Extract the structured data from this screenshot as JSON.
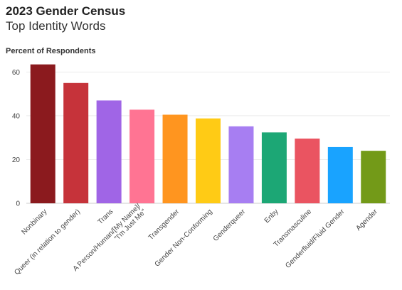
{
  "chart_data": {
    "type": "bar",
    "title": "2023 Gender Census",
    "subtitle": "Top Identity Words",
    "ylabel": "Percent of Respondents",
    "xlabel": "",
    "ylim": [
      0,
      65
    ],
    "yticks": [
      0,
      20,
      40,
      60
    ],
    "grid": true,
    "categories": [
      [
        "Nonbinary"
      ],
      [
        "Queer (in relation to gender)"
      ],
      [
        "Trans"
      ],
      [
        "A Person/Human/[My Name]/",
        "\"I'm Just Me\""
      ],
      [
        "Transgender"
      ],
      [
        "Gender Non-Conforming"
      ],
      [
        "Genderqueer"
      ],
      [
        "Enby"
      ],
      [
        "Transmasculine"
      ],
      [
        "Genderfluid/Fluid Gender"
      ],
      [
        "Agender"
      ]
    ],
    "values": [
      63.5,
      55,
      47,
      42.8,
      40.5,
      38.8,
      35.2,
      32.4,
      29.6,
      25.7,
      24
    ],
    "colors": [
      "#8b1a1e",
      "#c6333a",
      "#a065e6",
      "#ff7493",
      "#ff951f",
      "#ffcb15",
      "#a77ef2",
      "#1ca775",
      "#ea5461",
      "#19a3ff",
      "#739a18"
    ]
  }
}
